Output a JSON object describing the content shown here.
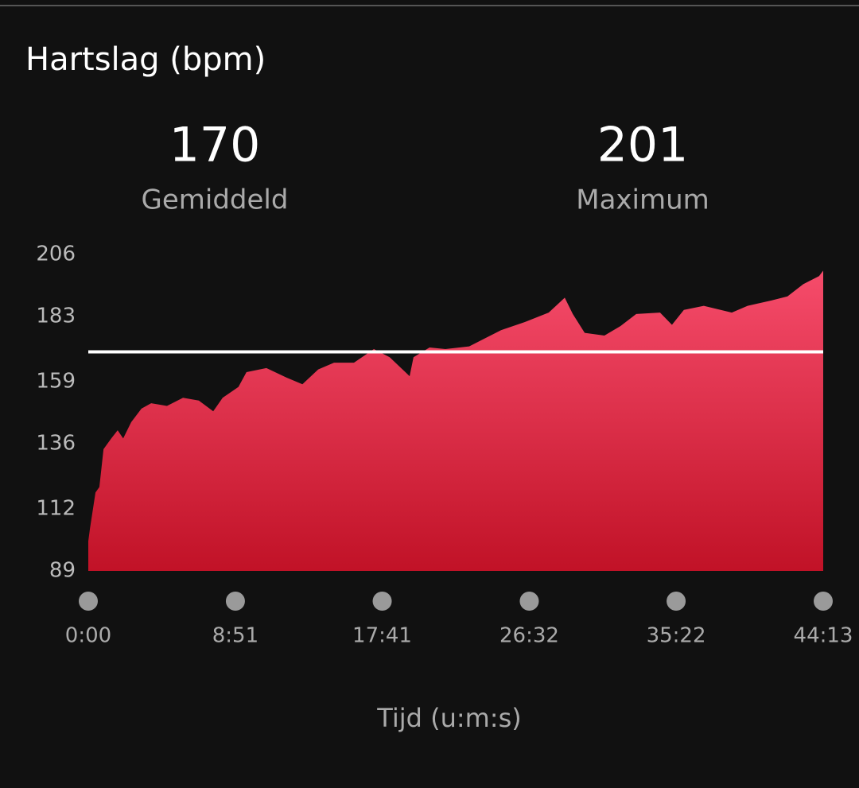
{
  "chart_data": {
    "type": "area",
    "title": "Hartslag (bpm)",
    "stats": [
      {
        "value": 170,
        "label": "Gemiddeld"
      },
      {
        "value": 201,
        "label": "Maximum"
      }
    ],
    "x_label": "Tijd (u:m:s)",
    "x": [
      0,
      6,
      26,
      40,
      55,
      83,
      106,
      126,
      155,
      192,
      227,
      284,
      342,
      399,
      451,
      485,
      542,
      571,
      643,
      715,
      773,
      830,
      887,
      959,
      1031,
      1088,
      1160,
      1174,
      1232,
      1289,
      1375,
      1432,
      1490,
      1576,
      1662,
      1720,
      1749,
      1792,
      1863,
      1921,
      1978,
      2064,
      2107,
      2150,
      2222,
      2323,
      2380,
      2466,
      2524,
      2581,
      2638,
      2653
    ],
    "series": [
      {
        "name": "Hartslag",
        "color": "#e8304f",
        "values": [
          100,
          104.6,
          118,
          120,
          134,
          138,
          141,
          138,
          144,
          149,
          151,
          150,
          153,
          152,
          148,
          153,
          157,
          162.5,
          164,
          160.5,
          158,
          163.5,
          166,
          166,
          171,
          168,
          161,
          168,
          171.6,
          171,
          172,
          175,
          178,
          181,
          184.5,
          190,
          184,
          177,
          176,
          179.5,
          184,
          184.5,
          180,
          185.5,
          187,
          184.5,
          187,
          189,
          190.5,
          195,
          198,
          200
        ]
      }
    ],
    "xlim": [
      0,
      2653
    ],
    "xticks": [
      {
        "value": 0,
        "label": "0:00"
      },
      {
        "value": 531,
        "label": "8:51"
      },
      {
        "value": 1061,
        "label": "17:41"
      },
      {
        "value": 1592,
        "label": "26:32"
      },
      {
        "value": 2122,
        "label": "35:22"
      },
      {
        "value": 2653,
        "label": "44:13"
      }
    ],
    "ylim": [
      89,
      206
    ],
    "yticks": [
      89,
      112,
      136,
      159,
      183,
      206
    ]
  }
}
